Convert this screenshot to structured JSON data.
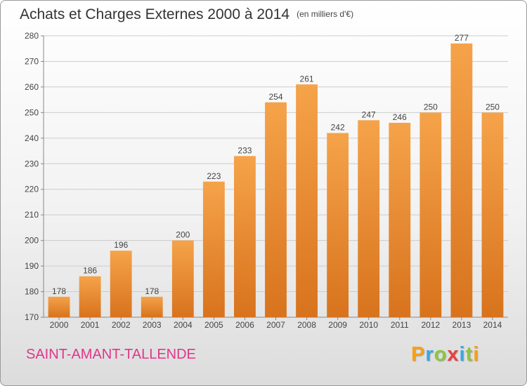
{
  "title": "Achats et Charges Externes 2000 à 2014",
  "unit": "(en milliers d'€)",
  "commune": "SAINT-AMANT-TALLENDE",
  "logo": "Proxiti",
  "colors": {
    "bar_top": "#f5a34a",
    "bar_bottom": "#d8731d",
    "commune": "#e0368a",
    "grid": "#cccccc"
  },
  "chart_data": {
    "type": "bar",
    "categories": [
      "2000",
      "2001",
      "2002",
      "2003",
      "2004",
      "2005",
      "2006",
      "2007",
      "2008",
      "2009",
      "2010",
      "2011",
      "2012",
      "2013",
      "2014"
    ],
    "values": [
      178,
      186,
      196,
      178,
      200,
      223,
      233,
      254,
      261,
      242,
      247,
      246,
      250,
      277,
      250
    ],
    "ylim": [
      170,
      280
    ],
    "yticks": [
      170,
      180,
      190,
      200,
      210,
      220,
      230,
      240,
      250,
      260,
      270,
      280
    ],
    "grid": true,
    "xlabel": "",
    "ylabel": ""
  }
}
